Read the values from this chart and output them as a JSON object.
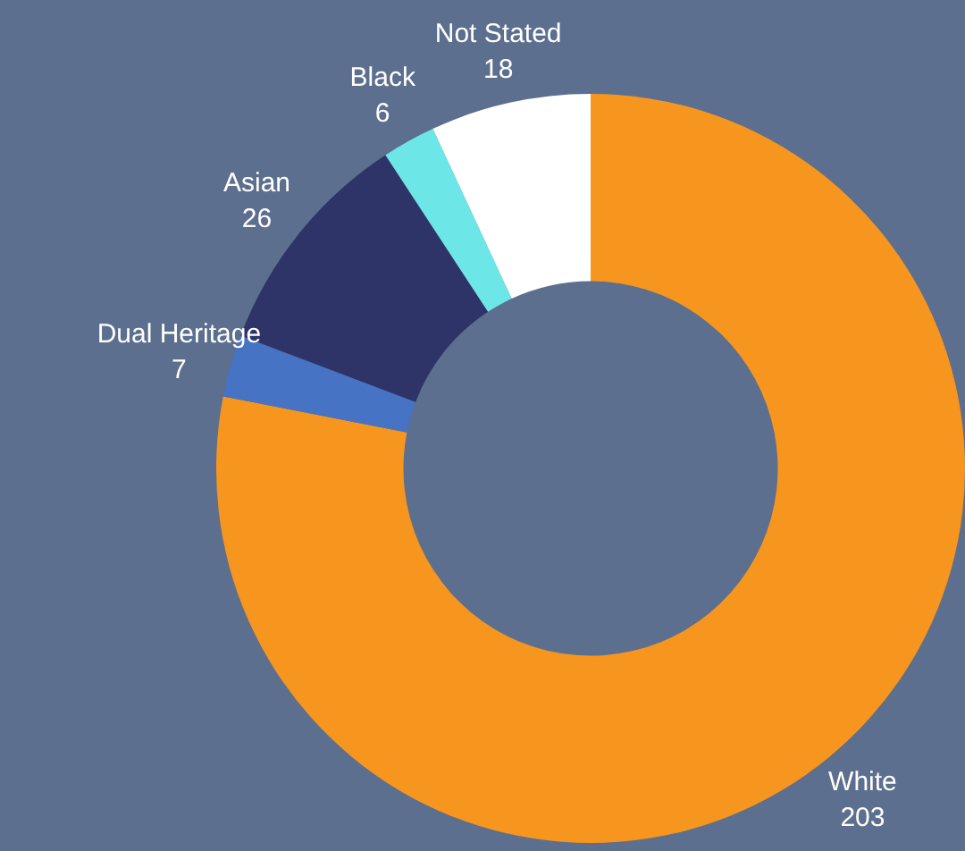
{
  "chart_data": {
    "type": "donut",
    "categories": [
      "White",
      "Dual Heritage",
      "Asian",
      "Black",
      "Not Stated"
    ],
    "values": [
      203,
      7,
      26,
      6,
      18
    ],
    "colors": [
      "#f7961f",
      "#4673c4",
      "#2e3468",
      "#6ce6e6",
      "#ffffff"
    ],
    "data_labels": true,
    "legend": false
  }
}
